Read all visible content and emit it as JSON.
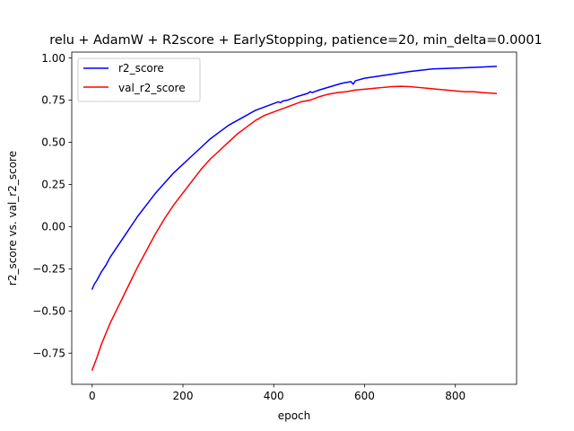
{
  "chart_data": {
    "type": "line",
    "title": "relu + AdamW + R2score + EarlyStopping, patience=20, min_delta=0.0001",
    "xlabel": "epoch",
    "ylabel": "r2_score vs. val_r2_score",
    "xlim": [
      -45,
      935
    ],
    "ylim": [
      -0.935,
      1.035
    ],
    "xticks": [
      0,
      200,
      400,
      600,
      800
    ],
    "yticks": [
      -0.75,
      -0.5,
      -0.25,
      0.0,
      0.25,
      0.5,
      0.75,
      1.0
    ],
    "xtick_labels": [
      "0",
      "200",
      "400",
      "600",
      "800"
    ],
    "ytick_labels": [
      "−0.75",
      "−0.50",
      "−0.25",
      "0.00",
      "0.25",
      "0.50",
      "0.75",
      "1.00"
    ],
    "grid": false,
    "legend_position": "top-left",
    "series": [
      {
        "name": "r2_score",
        "color": "#0000ff",
        "x": [
          0,
          5,
          10,
          20,
          30,
          40,
          50,
          60,
          80,
          100,
          120,
          140,
          160,
          180,
          200,
          220,
          240,
          260,
          280,
          300,
          320,
          340,
          360,
          380,
          400,
          410,
          415,
          420,
          430,
          450,
          475,
          480,
          485,
          500,
          550,
          570,
          575,
          580,
          600,
          650,
          700,
          750,
          800,
          850,
          890
        ],
        "y": [
          -0.37,
          -0.34,
          -0.32,
          -0.27,
          -0.23,
          -0.18,
          -0.14,
          -0.1,
          -0.02,
          0.06,
          0.13,
          0.2,
          0.26,
          0.32,
          0.37,
          0.42,
          0.47,
          0.52,
          0.56,
          0.6,
          0.63,
          0.66,
          0.69,
          0.71,
          0.73,
          0.74,
          0.735,
          0.745,
          0.75,
          0.77,
          0.79,
          0.8,
          0.795,
          0.81,
          0.85,
          0.86,
          0.845,
          0.865,
          0.88,
          0.9,
          0.92,
          0.935,
          0.94,
          0.945,
          0.95
        ]
      },
      {
        "name": "val_r2_score",
        "color": "#ff0000",
        "x": [
          0,
          10,
          20,
          40,
          60,
          80,
          100,
          120,
          140,
          160,
          180,
          200,
          220,
          240,
          260,
          280,
          300,
          320,
          340,
          360,
          380,
          400,
          420,
          440,
          460,
          480,
          500,
          520,
          540,
          560,
          580,
          600,
          620,
          640,
          660,
          680,
          700,
          720,
          740,
          760,
          780,
          800,
          820,
          840,
          860,
          890
        ],
        "y": [
          -0.85,
          -0.78,
          -0.7,
          -0.57,
          -0.46,
          -0.35,
          -0.24,
          -0.14,
          -0.04,
          0.05,
          0.13,
          0.2,
          0.27,
          0.34,
          0.4,
          0.45,
          0.5,
          0.55,
          0.59,
          0.63,
          0.66,
          0.68,
          0.7,
          0.72,
          0.74,
          0.75,
          0.77,
          0.785,
          0.795,
          0.8,
          0.81,
          0.815,
          0.82,
          0.825,
          0.83,
          0.832,
          0.83,
          0.825,
          0.82,
          0.815,
          0.81,
          0.805,
          0.8,
          0.8,
          0.795,
          0.79
        ]
      }
    ]
  }
}
